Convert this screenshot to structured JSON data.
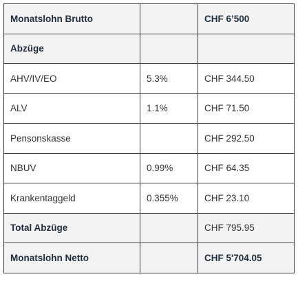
{
  "table": {
    "rows": [
      [
        "Monatslohn Brutto",
        null,
        "CHF 6’500"
      ],
      [
        "Abzüge",
        null,
        null
      ],
      [
        "AHV/IV/EO",
        "5.3%",
        "CHF 344.50"
      ],
      [
        "ALV",
        "1.1%",
        "CHF 71.50"
      ],
      [
        "Pensonskasse",
        null,
        "CHF 292.50"
      ],
      [
        "NBUV",
        "0.99%",
        "CHF 64.35"
      ],
      [
        "Krankentaggeld",
        "0.355%",
        "CHF 23.10"
      ],
      [
        "Total Abzüge",
        null,
        "CHF 795.95"
      ],
      [
        "Monatslohn Netto",
        null,
        "CHF 5'704.05"
      ]
    ]
  }
}
